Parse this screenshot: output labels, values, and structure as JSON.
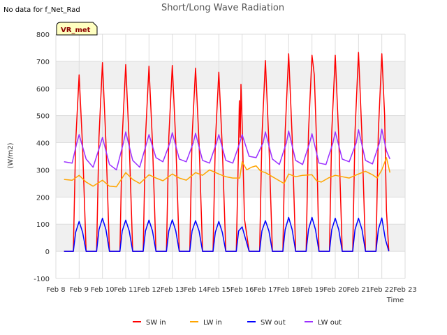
{
  "chart_data": {
    "type": "line",
    "title": "Short/Long Wave Radiation",
    "corner_note": "No data for f_Net_Rad",
    "badge": "VR_met",
    "xlabel": "Time",
    "ylabel": "(W/m2)",
    "ylim": [
      -100,
      800
    ],
    "xlim": [
      8,
      23
    ],
    "y_ticks": [
      -100,
      0,
      100,
      200,
      300,
      400,
      500,
      600,
      700,
      800
    ],
    "x_ticks": [
      {
        "v": 8,
        "label": "Feb 8"
      },
      {
        "v": 9,
        "label": "Feb 9"
      },
      {
        "v": 10,
        "label": "Feb 10"
      },
      {
        "v": 11,
        "label": "Feb 11"
      },
      {
        "v": 12,
        "label": "Feb 12"
      },
      {
        "v": 13,
        "label": "Feb 13"
      },
      {
        "v": 14,
        "label": "Feb 14"
      },
      {
        "v": 15,
        "label": "Feb 15"
      },
      {
        "v": 16,
        "label": "Feb 16"
      },
      {
        "v": 17,
        "label": "Feb 17"
      },
      {
        "v": 18,
        "label": "Feb 18"
      },
      {
        "v": 19,
        "label": "Feb 19"
      },
      {
        "v": 20,
        "label": "Feb 20"
      },
      {
        "v": 21,
        "label": "Feb 21"
      },
      {
        "v": 22,
        "label": "Feb 22"
      },
      {
        "v": 23,
        "label": "Feb 23"
      }
    ],
    "grid": true,
    "legend_position": "bottom",
    "series": [
      {
        "name": "SW in",
        "color": "#ff0000",
        "x": [
          8.35,
          8.75,
          8.85,
          9.0,
          9.15,
          9.3,
          9.75,
          9.85,
          10.0,
          10.15,
          10.3,
          10.75,
          10.85,
          11.0,
          11.15,
          11.3,
          11.75,
          11.85,
          12.0,
          12.15,
          12.3,
          12.75,
          12.85,
          13.0,
          13.15,
          13.3,
          13.75,
          13.85,
          14.0,
          14.15,
          14.3,
          14.75,
          14.85,
          15.0,
          15.15,
          15.3,
          15.75,
          15.85,
          15.88,
          15.92,
          15.95,
          16.0,
          16.05,
          16.1,
          16.3,
          16.75,
          16.85,
          17.0,
          17.15,
          17.3,
          17.75,
          17.85,
          18.0,
          18.15,
          18.3,
          18.75,
          18.85,
          19.0,
          19.1,
          19.2,
          19.3,
          19.75,
          19.85,
          20.0,
          20.15,
          20.3,
          20.75,
          20.85,
          21.0,
          21.15,
          21.3,
          21.75,
          21.85,
          22.0,
          22.12,
          22.2,
          22.3
        ],
        "y": [
          0,
          0,
          400,
          650,
          380,
          0,
          0,
          420,
          695,
          400,
          0,
          0,
          420,
          688,
          400,
          0,
          0,
          420,
          682,
          400,
          0,
          0,
          420,
          685,
          400,
          0,
          0,
          420,
          675,
          400,
          0,
          0,
          400,
          660,
          380,
          0,
          0,
          400,
          555,
          420,
          615,
          470,
          300,
          120,
          0,
          0,
          420,
          703,
          400,
          0,
          0,
          440,
          728,
          420,
          0,
          0,
          440,
          722,
          650,
          400,
          0,
          0,
          440,
          722,
          420,
          0,
          0,
          440,
          733,
          420,
          0,
          0,
          440,
          728,
          500,
          150,
          0
        ]
      },
      {
        "name": "LW in",
        "color": "#ffa500",
        "x": [
          8.35,
          8.7,
          9.0,
          9.3,
          9.6,
          10.0,
          10.3,
          10.6,
          11.0,
          11.3,
          11.6,
          12.0,
          12.3,
          12.6,
          13.0,
          13.3,
          13.6,
          14.0,
          14.3,
          14.6,
          15.0,
          15.3,
          15.6,
          15.9,
          16.0,
          16.2,
          16.4,
          16.6,
          16.8,
          17.0,
          17.3,
          17.6,
          17.8,
          18.0,
          18.3,
          18.6,
          19.0,
          19.2,
          19.4,
          19.7,
          20.0,
          20.3,
          20.6,
          21.0,
          21.3,
          21.6,
          21.8,
          22.0,
          22.2,
          22.35
        ],
        "y": [
          265,
          262,
          280,
          255,
          240,
          262,
          240,
          238,
          290,
          265,
          250,
          282,
          270,
          260,
          285,
          270,
          262,
          290,
          280,
          300,
          285,
          275,
          270,
          270,
          330,
          300,
          310,
          315,
          295,
          290,
          275,
          260,
          250,
          285,
          275,
          280,
          282,
          260,
          255,
          270,
          280,
          275,
          270,
          285,
          295,
          282,
          270,
          300,
          345,
          290
        ]
      },
      {
        "name": "SW out",
        "color": "#0000ff",
        "x": [
          8.35,
          8.75,
          8.85,
          9.0,
          9.15,
          9.3,
          9.75,
          9.85,
          10.0,
          10.15,
          10.3,
          10.75,
          10.85,
          11.0,
          11.15,
          11.3,
          11.75,
          11.85,
          12.0,
          12.15,
          12.3,
          12.75,
          12.85,
          13.0,
          13.15,
          13.3,
          13.75,
          13.85,
          14.0,
          14.15,
          14.3,
          14.75,
          14.85,
          15.0,
          15.15,
          15.3,
          15.75,
          15.85,
          16.0,
          16.1,
          16.3,
          16.75,
          16.85,
          17.0,
          17.15,
          17.3,
          17.75,
          17.85,
          18.0,
          18.15,
          18.3,
          18.75,
          18.85,
          19.0,
          19.15,
          19.3,
          19.75,
          19.85,
          20.0,
          20.15,
          20.3,
          20.75,
          20.85,
          21.0,
          21.15,
          21.3,
          21.75,
          21.85,
          22.0,
          22.15,
          22.3
        ],
        "y": [
          0,
          0,
          70,
          110,
          70,
          0,
          0,
          80,
          122,
          80,
          0,
          0,
          75,
          115,
          75,
          0,
          0,
          75,
          115,
          75,
          0,
          0,
          75,
          116,
          75,
          0,
          0,
          75,
          113,
          75,
          0,
          0,
          70,
          110,
          70,
          0,
          0,
          75,
          90,
          60,
          0,
          0,
          75,
          113,
          75,
          0,
          0,
          80,
          125,
          80,
          0,
          0,
          80,
          125,
          80,
          0,
          0,
          80,
          122,
          80,
          0,
          0,
          80,
          122,
          80,
          0,
          0,
          80,
          123,
          45,
          0
        ]
      },
      {
        "name": "LW out",
        "color": "#9b30ff",
        "x": [
          8.35,
          8.7,
          8.9,
          9.0,
          9.3,
          9.6,
          9.9,
          10.0,
          10.3,
          10.6,
          10.9,
          11.0,
          11.3,
          11.6,
          11.9,
          12.0,
          12.3,
          12.6,
          12.9,
          13.0,
          13.3,
          13.6,
          13.9,
          14.0,
          14.3,
          14.6,
          14.9,
          15.0,
          15.3,
          15.6,
          15.9,
          16.0,
          16.3,
          16.6,
          16.9,
          17.0,
          17.3,
          17.6,
          17.9,
          18.0,
          18.3,
          18.6,
          18.9,
          19.0,
          19.3,
          19.6,
          19.9,
          20.0,
          20.3,
          20.6,
          20.9,
          21.0,
          21.3,
          21.6,
          21.9,
          22.0,
          22.2,
          22.35
        ],
        "y": [
          330,
          325,
          400,
          430,
          340,
          310,
          390,
          420,
          320,
          300,
          400,
          440,
          335,
          310,
          400,
          430,
          345,
          330,
          400,
          437,
          340,
          330,
          400,
          435,
          335,
          325,
          400,
          430,
          335,
          325,
          400,
          430,
          350,
          345,
          400,
          440,
          340,
          320,
          400,
          443,
          335,
          320,
          400,
          433,
          325,
          320,
          400,
          440,
          340,
          330,
          400,
          448,
          335,
          322,
          400,
          450,
          370,
          340
        ]
      }
    ]
  }
}
